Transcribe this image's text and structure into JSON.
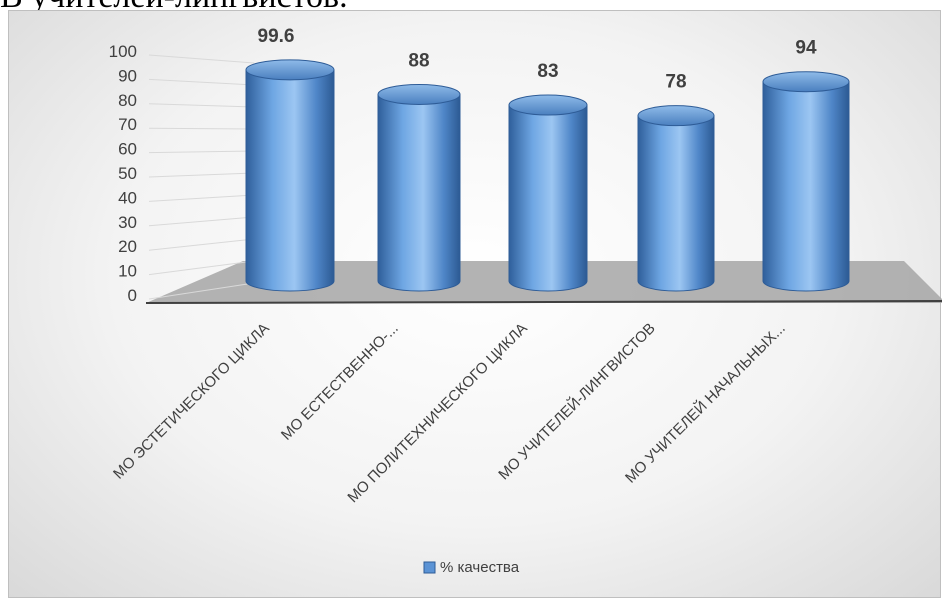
{
  "top_text": "В учителей-лингвистов.",
  "chart_data": {
    "type": "bar",
    "style": "3d-cylinder",
    "categories": [
      "МО ЭСТЕТИЧЕСКОГО ЦИКЛА",
      "МО ЕСТЕСТВЕННО-...",
      "МО ПОЛИТЕХНИЧЕСКОГО ЦИКЛА",
      "МО УЧИТЕЛЕЙ-ЛИНГВИСТОВ",
      "МО УЧИТЕЛЕЙ НАЧАЛЬНЫХ..."
    ],
    "series": [
      {
        "name": "% качества",
        "values": [
          99.6,
          88,
          83,
          78,
          94
        ]
      }
    ],
    "data_labels": [
      "99.6",
      "88",
      "83",
      "78",
      "94"
    ],
    "yticks": [
      0,
      10,
      20,
      30,
      40,
      50,
      60,
      70,
      80,
      90,
      100
    ],
    "ylim": [
      0,
      100
    ],
    "grid": true,
    "legend_position": "bottom",
    "colors": {
      "bar_light": "#a9cdf4",
      "bar_mid": "#5b93d5",
      "bar_dark": "#2e5c97",
      "floor": "#a6a6a6",
      "axis_text": "#404040"
    }
  }
}
